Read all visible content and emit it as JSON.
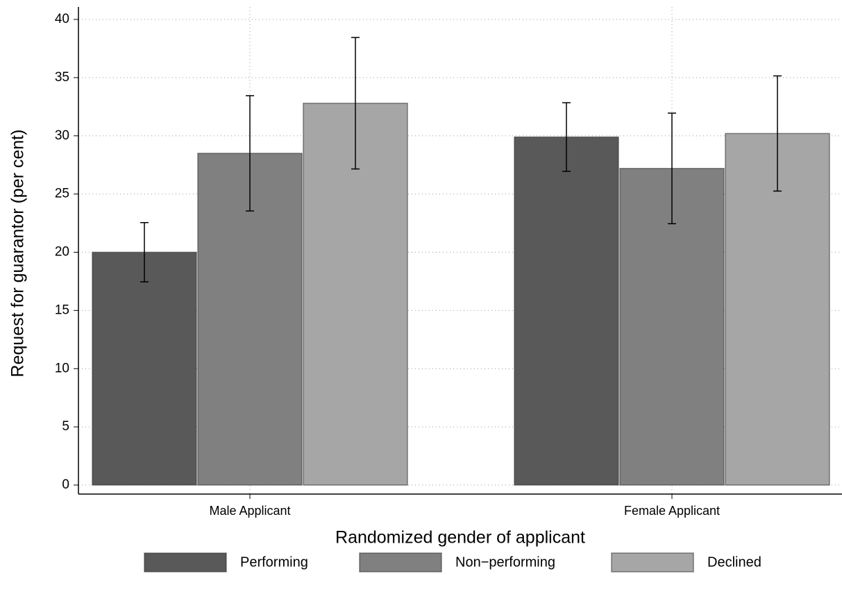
{
  "chart_data": {
    "type": "bar",
    "x_label": "Randomized gender of applicant",
    "y_label": "Request for guarantor (per cent)",
    "categories": [
      "Male Applicant",
      "Female Applicant"
    ],
    "series": [
      {
        "name": "Performing",
        "color": "#595959",
        "values": [
          20.0,
          29.9
        ],
        "errors": [
          2.55,
          2.95
        ]
      },
      {
        "name": "Non−performing",
        "color": "#808080",
        "values": [
          28.5,
          27.2
        ],
        "errors": [
          4.95,
          4.75
        ]
      },
      {
        "name": "Declined",
        "color": "#a6a6a6",
        "values": [
          32.8,
          30.2
        ],
        "errors": [
          5.65,
          4.95
        ]
      }
    ],
    "ylim": [
      0,
      40
    ],
    "yticks": [
      0,
      5,
      10,
      15,
      20,
      25,
      30,
      35,
      40
    ],
    "grid": true,
    "legend": "bottom"
  }
}
